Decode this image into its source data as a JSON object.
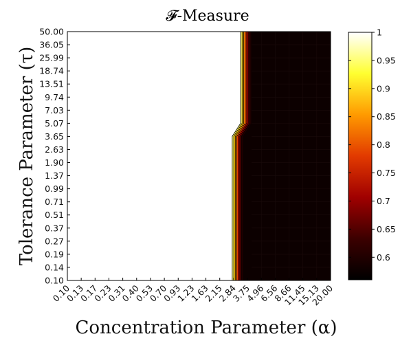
{
  "chart_data": {
    "type": "heatmap",
    "title": "𝓕-Measure",
    "xlabel": "Concentration Parameter (α)",
    "ylabel": "Tolerance Parameter (τ)",
    "x_ticks": [
      "0.10",
      "0.13",
      "0.17",
      "0.23",
      "0.31",
      "0.40",
      "0.53",
      "0.70",
      "0.93",
      "1.23",
      "1.63",
      "2.15",
      "2.84",
      "3.75",
      "4.96",
      "6.56",
      "8.66",
      "11.45",
      "15.13",
      "20.00"
    ],
    "y_ticks": [
      "0.10",
      "0.14",
      "0.19",
      "0.27",
      "0.37",
      "0.51",
      "0.71",
      "0.99",
      "1.37",
      "1.90",
      "2.63",
      "3.65",
      "5.07",
      "7.03",
      "9.74",
      "13.51",
      "18.74",
      "25.99",
      "36.05",
      "50.00"
    ],
    "colorbar": {
      "min": 0.56,
      "max": 1.0,
      "ticks": [
        "0.6",
        "0.65",
        "0.7",
        "0.75",
        "0.8",
        "0.85",
        "0.9",
        "0.95",
        "1"
      ]
    },
    "colormap": [
      "#000000",
      "#3c0000",
      "#a00000",
      "#e23a00",
      "#ff9a00",
      "#ffff30",
      "#ffffff"
    ],
    "description_boundary": {
      "high_tau_transition_alpha": 3.75,
      "low_tau_transition_alpha": 2.84,
      "transition_tau": 5.07,
      "value_left": 1.0,
      "value_right": 0.56
    }
  }
}
